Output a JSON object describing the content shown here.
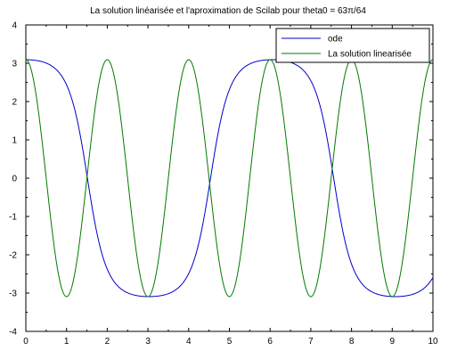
{
  "chart_data": {
    "type": "line",
    "title": "La solution linéarisée et l'aproximation de Scilab pour theta0 = 63π/64",
    "xlabel": "",
    "ylabel": "",
    "xlim": [
      0,
      10
    ],
    "ylim": [
      -4,
      4
    ],
    "xticks": [
      0,
      1,
      2,
      3,
      4,
      5,
      6,
      7,
      8,
      9,
      10
    ],
    "yticks": [
      -4,
      -3,
      -2,
      -1,
      0,
      1,
      2,
      3,
      4
    ],
    "grid": false,
    "legend_position": "top-right",
    "theta0": 3.0925,
    "series": [
      {
        "name": "ode",
        "color": "#0000cc",
        "kind": "nonlinear-pendulum",
        "amplitude": 3.0925,
        "period": 6.05
      },
      {
        "name": "La solution linearisée",
        "color": "#007a00",
        "kind": "linearized-cosine",
        "amplitude": 3.0925,
        "period": 2.0
      }
    ]
  }
}
